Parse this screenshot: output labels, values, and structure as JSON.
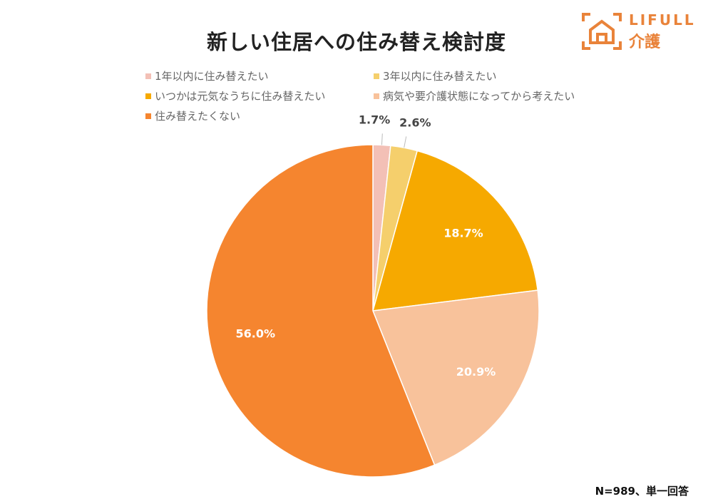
{
  "chart_data": {
    "type": "pie",
    "title": "新しい住居への住み替え検討度",
    "categories": [
      "1年以内に住み替えたい",
      "3年以内に住み替えたい",
      "いつかは元気なうちに住み替えたい",
      "病気や要介護状態になってから考えたい",
      "住み替えたくない"
    ],
    "values": [
      1.7,
      2.6,
      18.7,
      20.9,
      56.0
    ],
    "labels": [
      "1.7%",
      "2.6%",
      "18.7%",
      "20.9%",
      "56.0%"
    ],
    "colors": [
      "#f3c0b6",
      "#f5cf6c",
      "#f6a900",
      "#f8c29b",
      "#f5852f"
    ],
    "legend_position": "top",
    "start": "12 o'clock, clockwise"
  },
  "note": "N=989、単一回答",
  "logo": {
    "brand": "LIFULL",
    "sub": "介護",
    "color": "#e9833a"
  }
}
